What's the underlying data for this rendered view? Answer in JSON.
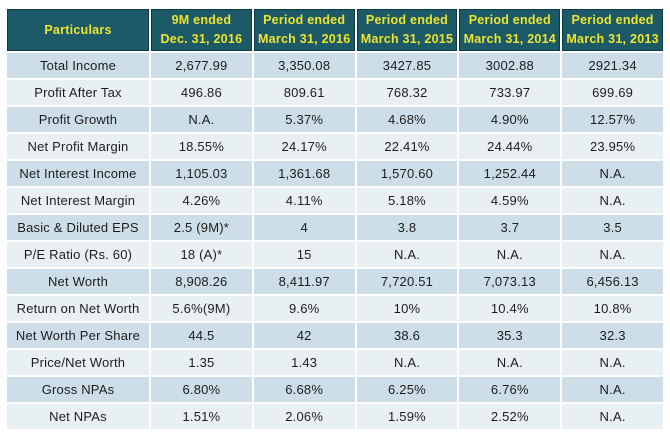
{
  "colors": {
    "header_bg": "#1d5a68",
    "header_border": "#0e3a45",
    "header_text": "#ece431",
    "row_alt_bg": "#cddee8",
    "row_bg": "#e9f0f4",
    "separator": "#ffffff",
    "body_text": "#1d1d1d",
    "page_bg": "#ffffff"
  },
  "chart_data": {
    "type": "table",
    "columns": [
      "Particulars",
      "9M ended\nDec. 31, 2016",
      "Period ended\nMarch 31, 2016",
      "Period ended\nMarch 31, 2015",
      "Period ended\nMarch 31, 2014",
      "Period ended\nMarch 31, 2013"
    ],
    "rows": [
      {
        "particular": "Total Income",
        "values": [
          "2,677.99",
          "3,350.08",
          "3427.85",
          "3002.88",
          "2921.34"
        ]
      },
      {
        "particular": "Profit After Tax",
        "values": [
          "496.86",
          "809.61",
          "768.32",
          "733.97",
          "699.69"
        ]
      },
      {
        "particular": "Profit Growth",
        "values": [
          "N.A.",
          "5.37%",
          "4.68%",
          "4.90%",
          "12.57%"
        ]
      },
      {
        "particular": "Net Profit Margin",
        "values": [
          "18.55%",
          "24.17%",
          "22.41%",
          "24.44%",
          "23.95%"
        ]
      },
      {
        "particular": "Net Interest Income",
        "values": [
          "1,105.03",
          "1,361.68",
          "1,570.60",
          "1,252.44",
          "N.A."
        ]
      },
      {
        "particular": "Net Interest Margin",
        "values": [
          "4.26%",
          "4.11%",
          "5.18%",
          "4.59%",
          "N.A."
        ]
      },
      {
        "particular": "Basic & Diluted EPS",
        "values": [
          "2.5 (9M)*",
          "4",
          "3.8",
          "3.7",
          "3.5"
        ]
      },
      {
        "particular": "P/E Ratio (Rs. 60)",
        "values": [
          "18 (A)*",
          "15",
          "N.A.",
          "N.A.",
          "N.A."
        ]
      },
      {
        "particular": "Net Worth",
        "values": [
          "8,908.26",
          "8,411.97",
          "7,720.51",
          "7,073.13",
          "6,456.13"
        ]
      },
      {
        "particular": "Return on Net Worth",
        "values": [
          "5.6%(9M)",
          "9.6%",
          "10%",
          "10.4%",
          "10.8%"
        ]
      },
      {
        "particular": "Net Worth Per Share",
        "values": [
          "44.5",
          "42",
          "38.6",
          "35.3",
          "32.3"
        ]
      },
      {
        "particular": "Price/Net Worth",
        "values": [
          "1.35",
          "1.43",
          "N.A.",
          "N.A.",
          "N.A."
        ]
      },
      {
        "particular": "Gross NPAs",
        "values": [
          "6.80%",
          "6.68%",
          "6.25%",
          "6.76%",
          "N.A."
        ]
      },
      {
        "particular": "Net NPAs",
        "values": [
          "1.51%",
          "2.06%",
          "1.59%",
          "2.52%",
          "N.A."
        ]
      }
    ]
  }
}
